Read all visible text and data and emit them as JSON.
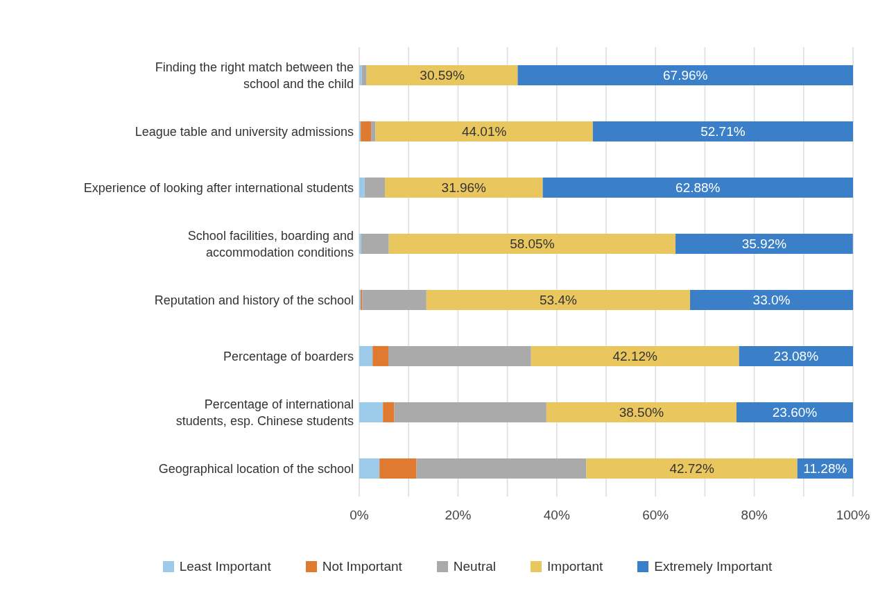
{
  "chart_data": {
    "type": "bar",
    "orientation": "horizontal",
    "stacked": true,
    "categories": [
      "Finding the right match between the\nschool and the child",
      "League table and university admissions",
      "Experience of looking after international students",
      "School facilities, boarding and\naccommodation conditions",
      "Reputation and history of the school",
      "Percentage of boarders",
      "Percentage of international\nstudents, esp. Chinese students",
      "Geographical location of the school"
    ],
    "series": [
      {
        "name": "Least Important",
        "color": "#9ccbea",
        "values": [
          0.5,
          0.3,
          1.1,
          0.4,
          0.3,
          2.7,
          4.8,
          4.1
        ]
      },
      {
        "name": "Not Important",
        "color": "#e07a30",
        "values": [
          0,
          2.1,
          0,
          0,
          0.3,
          3.2,
          2.3,
          7.5
        ]
      },
      {
        "name": "Neutral",
        "color": "#aaaaaa",
        "values": [
          1.0,
          0.9,
          4.1,
          5.6,
          13.0,
          28.9,
          30.8,
          34.4
        ]
      },
      {
        "name": "Important",
        "color": "#e9c65e",
        "values": [
          30.59,
          44.01,
          31.96,
          58.05,
          53.4,
          42.12,
          38.5,
          42.72
        ],
        "value_labels": [
          "30.59%",
          "44.01%",
          "31.96%",
          "58.05%",
          "53.4%",
          "42.12%",
          "38.50%",
          "42.72%"
        ]
      },
      {
        "name": "Extremely Important",
        "color": "#3a7fc8",
        "values": [
          67.96,
          52.71,
          62.88,
          35.92,
          33.0,
          23.08,
          23.6,
          11.28
        ],
        "value_labels": [
          "67.96%",
          "52.71%",
          "62.88%",
          "35.92%",
          "33.0%",
          "23.08%",
          "23.60%",
          "11.28%"
        ]
      }
    ],
    "xlim": [
      0,
      100
    ],
    "xticks": [
      {
        "value": 0,
        "label": "0%"
      },
      {
        "value": 10,
        "label": null
      },
      {
        "value": 20,
        "label": "20%"
      },
      {
        "value": 30,
        "label": null
      },
      {
        "value": 40,
        "label": "40%"
      },
      {
        "value": 50,
        "label": null
      },
      {
        "value": 60,
        "label": "60%"
      },
      {
        "value": 70,
        "label": null
      },
      {
        "value": 80,
        "label": "80%"
      },
      {
        "value": 90,
        "label": null
      },
      {
        "value": 100,
        "label": "100%"
      }
    ],
    "grid": "x",
    "legend": "bottom"
  }
}
